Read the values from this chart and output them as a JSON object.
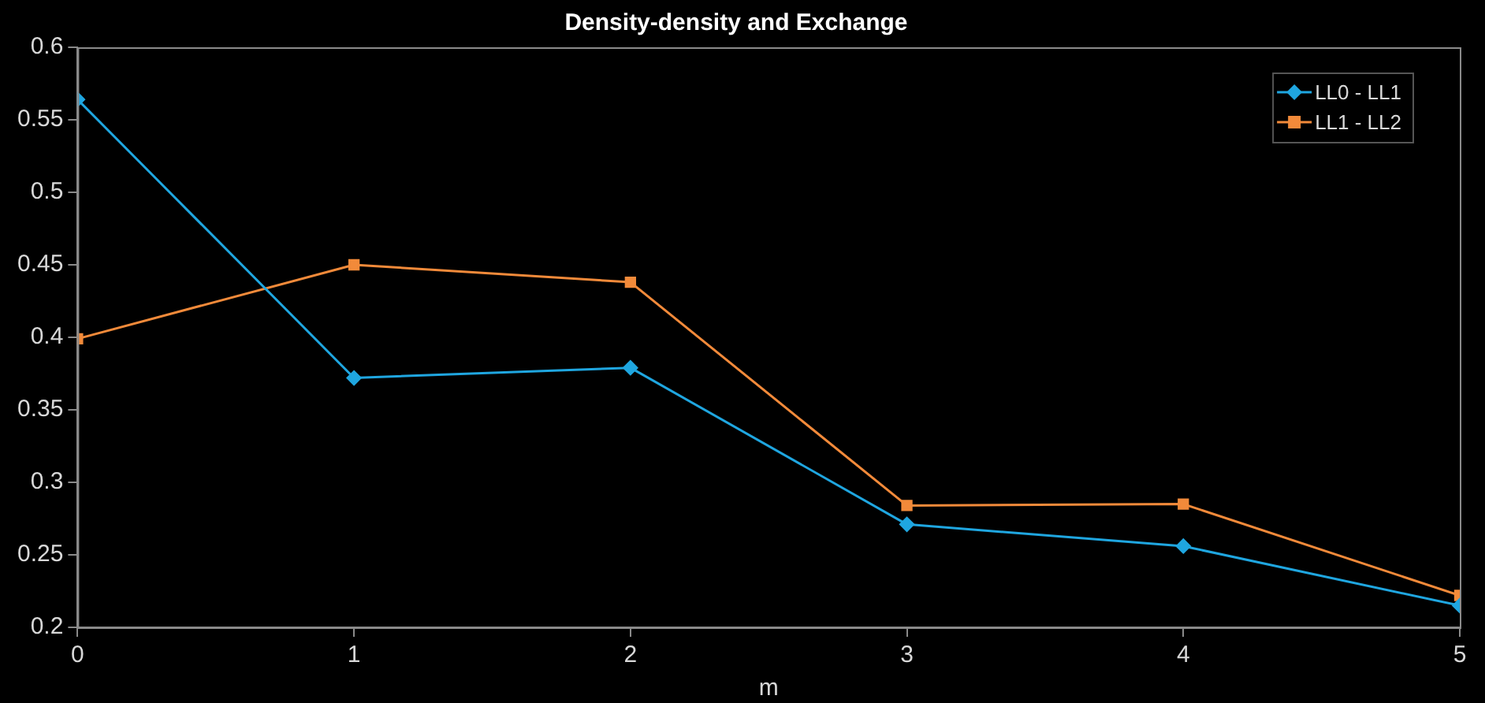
{
  "chart_data": {
    "type": "line",
    "title": "Density-density and Exchange",
    "xlabel": "m",
    "x": [
      0,
      1,
      2,
      3,
      4,
      5
    ],
    "series": [
      {
        "name": "LL0 - LL1",
        "color": "#1fa6e0",
        "marker": "diamond",
        "values": [
          0.564,
          0.372,
          0.379,
          0.271,
          0.256,
          0.215
        ]
      },
      {
        "name": "LL1 - LL2",
        "color": "#f28a3a",
        "marker": "square",
        "values": [
          0.399,
          0.45,
          0.438,
          0.284,
          0.285,
          0.222
        ]
      }
    ],
    "xlim": [
      0,
      5
    ],
    "xticks": [
      0,
      1,
      2,
      3,
      4,
      5
    ],
    "ylim": [
      0.2,
      0.6
    ],
    "yticks": [
      0.2,
      0.25,
      0.3,
      0.35,
      0.4,
      0.45,
      0.5,
      0.55,
      0.6
    ],
    "grid": false,
    "legend": "top right",
    "line_style": "solid"
  }
}
